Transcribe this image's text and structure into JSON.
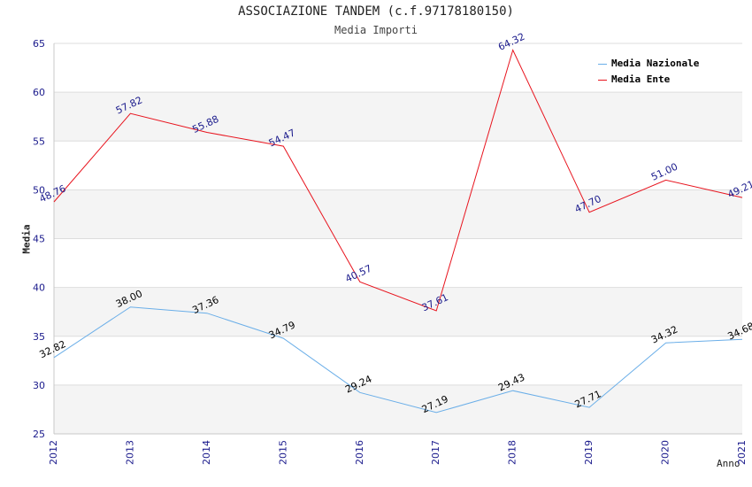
{
  "chart_data": {
    "type": "line",
    "title": "ASSOCIAZIONE TANDEM (c.f.97178180150)",
    "subtitle": "Media Importi",
    "xlabel": "Anno",
    "ylabel": "Media",
    "x": [
      "2012",
      "2013",
      "2014",
      "2015",
      "2016",
      "2017",
      "2018",
      "2019",
      "2020",
      "2021"
    ],
    "ylim": [
      25,
      65
    ],
    "yticks": [
      25,
      30,
      35,
      40,
      45,
      50,
      55,
      60,
      65
    ],
    "grid": true,
    "legend_position": "top-right",
    "series": [
      {
        "name": "Media Nazionale",
        "color": "#6aaee8",
        "label_color": "#000000",
        "values": [
          32.82,
          38.0,
          37.36,
          34.79,
          29.24,
          27.19,
          29.43,
          27.71,
          34.32,
          34.68
        ],
        "labels": [
          "32.82",
          "38.00",
          "37.36",
          "34.79",
          "29.24",
          "27.19",
          "29.43",
          "27.71",
          "34.32",
          "34.68"
        ]
      },
      {
        "name": "Media Ente",
        "color": "#e8141e",
        "label_color": "#1a1a8c",
        "values": [
          48.76,
          57.82,
          55.88,
          54.47,
          40.57,
          37.61,
          64.32,
          47.7,
          51.0,
          49.21
        ],
        "labels": [
          "48.76",
          "57.82",
          "55.88",
          "54.47",
          "40.57",
          "37.61",
          "64.32",
          "47.70",
          "51.00",
          "49.21"
        ]
      }
    ]
  }
}
